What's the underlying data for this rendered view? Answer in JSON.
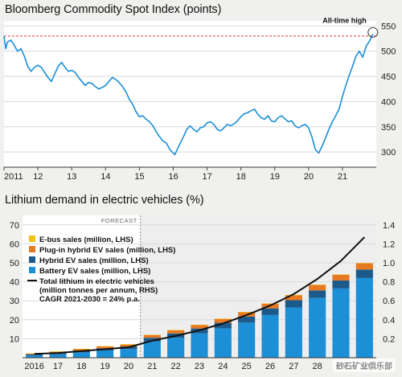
{
  "watermark": "砂石矿业俱乐部",
  "chart_data": [
    {
      "type": "line",
      "title": "Bloomberg Commodity Spot Index (points)",
      "x_ticks": [
        "2011",
        "12",
        "13",
        "14",
        "15",
        "16",
        "17",
        "18",
        "19",
        "20",
        "21"
      ],
      "y_ticks": [
        300,
        350,
        400,
        450,
        500,
        550
      ],
      "ylim": [
        270,
        560
      ],
      "xlim": [
        2011.0,
        2022.0
      ],
      "annotation": "All-time high",
      "reference_value": 530,
      "series": [
        {
          "color": "#1a8fd8",
          "points": [
            [
              2011.0,
              530
            ],
            [
              2011.05,
              505
            ],
            [
              2011.1,
              518
            ],
            [
              2011.2,
              522
            ],
            [
              2011.3,
              512
            ],
            [
              2011.4,
              500
            ],
            [
              2011.5,
              505
            ],
            [
              2011.6,
              490
            ],
            [
              2011.7,
              470
            ],
            [
              2011.8,
              460
            ],
            [
              2011.9,
              468
            ],
            [
              2012.0,
              472
            ],
            [
              2012.1,
              468
            ],
            [
              2012.2,
              458
            ],
            [
              2012.3,
              448
            ],
            [
              2012.4,
              440
            ],
            [
              2012.5,
              455
            ],
            [
              2012.6,
              470
            ],
            [
              2012.7,
              478
            ],
            [
              2012.8,
              468
            ],
            [
              2012.9,
              460
            ],
            [
              2013.0,
              462
            ],
            [
              2013.1,
              458
            ],
            [
              2013.2,
              448
            ],
            [
              2013.3,
              440
            ],
            [
              2013.4,
              432
            ],
            [
              2013.5,
              438
            ],
            [
              2013.6,
              436
            ],
            [
              2013.7,
              430
            ],
            [
              2013.8,
              425
            ],
            [
              2013.9,
              428
            ],
            [
              2014.0,
              432
            ],
            [
              2014.1,
              440
            ],
            [
              2014.2,
              448
            ],
            [
              2014.3,
              444
            ],
            [
              2014.4,
              438
            ],
            [
              2014.5,
              430
            ],
            [
              2014.6,
              420
            ],
            [
              2014.7,
              405
            ],
            [
              2014.8,
              395
            ],
            [
              2014.9,
              380
            ],
            [
              2015.0,
              370
            ],
            [
              2015.1,
              372
            ],
            [
              2015.2,
              365
            ],
            [
              2015.3,
              360
            ],
            [
              2015.4,
              352
            ],
            [
              2015.5,
              340
            ],
            [
              2015.6,
              330
            ],
            [
              2015.7,
              322
            ],
            [
              2015.8,
              318
            ],
            [
              2015.9,
              305
            ],
            [
              2016.0,
              298
            ],
            [
              2016.05,
              295
            ],
            [
              2016.15,
              310
            ],
            [
              2016.3,
              330
            ],
            [
              2016.4,
              345
            ],
            [
              2016.5,
              352
            ],
            [
              2016.6,
              345
            ],
            [
              2016.7,
              340
            ],
            [
              2016.8,
              348
            ],
            [
              2016.9,
              350
            ],
            [
              2017.0,
              358
            ],
            [
              2017.1,
              360
            ],
            [
              2017.2,
              355
            ],
            [
              2017.3,
              345
            ],
            [
              2017.4,
              342
            ],
            [
              2017.5,
              348
            ],
            [
              2017.6,
              355
            ],
            [
              2017.7,
              352
            ],
            [
              2017.8,
              356
            ],
            [
              2017.9,
              362
            ],
            [
              2018.0,
              370
            ],
            [
              2018.1,
              376
            ],
            [
              2018.2,
              378
            ],
            [
              2018.3,
              382
            ],
            [
              2018.4,
              385
            ],
            [
              2018.5,
              375
            ],
            [
              2018.6,
              368
            ],
            [
              2018.7,
              365
            ],
            [
              2018.8,
              372
            ],
            [
              2018.9,
              362
            ],
            [
              2019.0,
              360
            ],
            [
              2019.1,
              368
            ],
            [
              2019.2,
              372
            ],
            [
              2019.3,
              366
            ],
            [
              2019.4,
              360
            ],
            [
              2019.5,
              362
            ],
            [
              2019.6,
              352
            ],
            [
              2019.7,
              348
            ],
            [
              2019.8,
              352
            ],
            [
              2019.9,
              355
            ],
            [
              2020.0,
              348
            ],
            [
              2020.1,
              330
            ],
            [
              2020.2,
              305
            ],
            [
              2020.3,
              298
            ],
            [
              2020.4,
              312
            ],
            [
              2020.5,
              328
            ],
            [
              2020.6,
              345
            ],
            [
              2020.7,
              360
            ],
            [
              2020.8,
              372
            ],
            [
              2020.9,
              385
            ],
            [
              2021.0,
              410
            ],
            [
              2021.1,
              432
            ],
            [
              2021.2,
              452
            ],
            [
              2021.3,
              470
            ],
            [
              2021.4,
              490
            ],
            [
              2021.5,
              500
            ],
            [
              2021.6,
              488
            ],
            [
              2021.7,
              510
            ],
            [
              2021.8,
              520
            ],
            [
              2021.9,
              534
            ]
          ]
        }
      ]
    },
    {
      "type": "bar",
      "title": "Lithium demand in electric vehicles (%)",
      "categories": [
        "2016",
        "17",
        "18",
        "19",
        "20",
        "21",
        "22",
        "23",
        "24",
        "25",
        "26",
        "27",
        "28",
        "29",
        "30"
      ],
      "forecast_label": "FORECAST",
      "forecast_start_index": 5,
      "y_ticks_left": [
        10,
        20,
        30,
        40,
        50,
        60,
        70
      ],
      "ylim_left": [
        0,
        75
      ],
      "y_ticks_right": [
        0.2,
        0.4,
        0.6,
        0.8,
        1.0,
        1.2,
        1.4
      ],
      "ylim_right": [
        0,
        1.5
      ],
      "series": [
        {
          "name": "Battery EV sales (million, LHS)",
          "color": "#1c8fd6",
          "values": [
            1.2,
            1.8,
            2.8,
            3.8,
            4.6,
            8.5,
            10.5,
            12.8,
            15.5,
            18.5,
            22.5,
            26.5,
            31.5,
            36.5,
            42.0
          ]
        },
        {
          "name": "Hybrid EV sales (million, LHS)",
          "color": "#1d5a8c",
          "values": [
            0.6,
            0.8,
            1.0,
            1.2,
            1.3,
            2.0,
            2.3,
            2.6,
            2.9,
            3.2,
            3.5,
            3.8,
            4.0,
            4.2,
            4.5
          ]
        },
        {
          "name": "Plug-in hybrid EV sales (million, LHS)",
          "color": "#e67a22",
          "values": [
            0.4,
            0.6,
            0.8,
            1.0,
            1.1,
            1.5,
            1.7,
            1.9,
            2.1,
            2.3,
            2.5,
            2.7,
            2.9,
            3.1,
            3.3
          ]
        },
        {
          "name": "E-bus sales (million, LHS)",
          "color": "#f2c21a",
          "values": [
            0.1,
            0.1,
            0.1,
            0.1,
            0.1,
            0.1,
            0.1,
            0.1,
            0.1,
            0.1,
            0.1,
            0.1,
            0.1,
            0.1,
            0.1
          ]
        }
      ],
      "line_series": {
        "name": "Total lithium in electric vehicles (million tonnes per annum, RHS)",
        "legend_lines": [
          "Total lithium in electric vehicles",
          "(million tonnes per annum, RHS)",
          "CAGR 2021-2030 = 24% p.a."
        ],
        "color": "#111111",
        "values": [
          0.04,
          0.05,
          0.07,
          0.09,
          0.11,
          0.18,
          0.23,
          0.29,
          0.36,
          0.45,
          0.55,
          0.67,
          0.83,
          1.02,
          1.27
        ]
      }
    }
  ]
}
